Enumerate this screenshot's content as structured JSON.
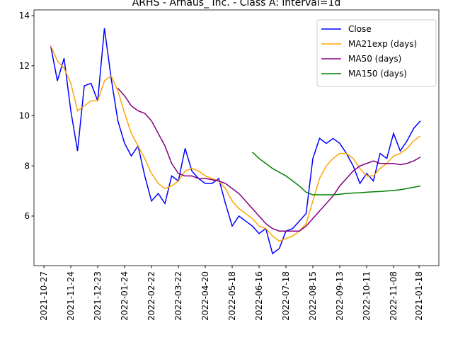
{
  "chart_data": {
    "type": "line",
    "title": "ARHS - Arhaus_ Inc. - Class A: interval=1d",
    "x": [
      5,
      10,
      15,
      20,
      25,
      30,
      35,
      40,
      45,
      50,
      55,
      60,
      65,
      70,
      75,
      80,
      85,
      90,
      95,
      100,
      105,
      110,
      115,
      120,
      125,
      130,
      135,
      140,
      145,
      150,
      155,
      160,
      165,
      170,
      175,
      180,
      185,
      190,
      195,
      200,
      205,
      210,
      215,
      220,
      225,
      230,
      235,
      240,
      245,
      250,
      255,
      260,
      265,
      270,
      275,
      280
    ],
    "series": [
      {
        "name": "Close",
        "color": "#0000ff",
        "values": [
          12.8,
          11.4,
          12.3,
          10.2,
          8.6,
          11.2,
          11.3,
          10.6,
          13.5,
          11.5,
          9.8,
          8.9,
          8.4,
          8.8,
          7.6,
          6.6,
          6.9,
          6.5,
          7.6,
          7.4,
          8.7,
          7.8,
          7.5,
          7.3,
          7.3,
          7.5,
          6.5,
          5.6,
          6.0,
          5.8,
          5.6,
          5.3,
          5.5,
          4.5,
          4.7,
          5.4,
          5.5,
          5.8,
          6.1,
          8.3,
          9.1,
          8.9,
          9.1,
          8.9,
          8.5,
          8.0,
          7.3,
          7.7,
          7.4,
          8.5,
          8.3,
          9.3,
          8.6,
          9.0,
          9.5,
          9.8
        ]
      },
      {
        "name": "MA21exp (days)",
        "color": "#ffa500",
        "values": [
          12.8,
          12.2,
          11.9,
          11.3,
          10.2,
          10.4,
          10.6,
          10.6,
          11.4,
          11.6,
          11.0,
          10.1,
          9.3,
          8.8,
          8.3,
          7.7,
          7.3,
          7.1,
          7.2,
          7.4,
          7.8,
          7.9,
          7.8,
          7.6,
          7.5,
          7.4,
          7.1,
          6.6,
          6.3,
          6.1,
          5.9,
          5.6,
          5.5,
          5.2,
          5.0,
          5.1,
          5.2,
          5.4,
          5.7,
          6.6,
          7.5,
          8.0,
          8.3,
          8.5,
          8.5,
          8.3,
          7.9,
          7.6,
          7.6,
          7.9,
          8.1,
          8.4,
          8.5,
          8.7,
          9.0,
          9.2
        ]
      },
      {
        "name": "MA50 (days)",
        "color": "#800080",
        "values": [
          null,
          null,
          null,
          null,
          null,
          null,
          null,
          null,
          null,
          null,
          11.1,
          10.8,
          10.4,
          10.2,
          10.1,
          9.8,
          9.3,
          8.8,
          8.1,
          7.7,
          7.6,
          7.6,
          7.5,
          7.5,
          7.45,
          7.4,
          7.3,
          7.1,
          6.9,
          6.6,
          6.3,
          6.0,
          5.7,
          5.5,
          5.4,
          5.4,
          5.4,
          5.4,
          5.6,
          5.9,
          6.2,
          6.5,
          6.8,
          7.2,
          7.5,
          7.8,
          8.0,
          8.1,
          8.2,
          8.1,
          8.1,
          8.1,
          8.05,
          8.1,
          8.2,
          8.35
        ]
      },
      {
        "name": "MA150 (days)",
        "color": "#008000",
        "values": [
          null,
          null,
          null,
          null,
          null,
          null,
          null,
          null,
          null,
          null,
          null,
          null,
          null,
          null,
          null,
          null,
          null,
          null,
          null,
          null,
          null,
          null,
          null,
          null,
          null,
          null,
          null,
          null,
          null,
          null,
          8.55,
          8.3,
          8.1,
          7.9,
          7.75,
          7.6,
          7.4,
          7.2,
          6.95,
          6.85,
          6.85,
          6.85,
          6.85,
          6.87,
          6.9,
          6.92,
          6.93,
          6.95,
          6.97,
          6.98,
          7.0,
          7.02,
          7.05,
          7.1,
          7.15,
          7.2
        ]
      }
    ],
    "xlim": [
      -7.4,
      293.7
    ],
    "xticks": [
      {
        "value": 0,
        "label": "2021-10-27"
      },
      {
        "value": 20,
        "label": "2021-11-24"
      },
      {
        "value": 40,
        "label": "2021-12-23"
      },
      {
        "value": 60,
        "label": "2022-01-24"
      },
      {
        "value": 80,
        "label": "2022-02-22"
      },
      {
        "value": 100,
        "label": "2022-03-22"
      },
      {
        "value": 120,
        "label": "2022-04-20"
      },
      {
        "value": 140,
        "label": "2022-05-18"
      },
      {
        "value": 160,
        "label": "2022-06-16"
      },
      {
        "value": 180,
        "label": "2022-07-18"
      },
      {
        "value": 200,
        "label": "2022-08-15"
      },
      {
        "value": 220,
        "label": "2022-09-13"
      },
      {
        "value": 240,
        "label": "2022-10-11"
      },
      {
        "value": 260,
        "label": "2022-11-08"
      },
      {
        "value": 279,
        "label": "2021-01-18"
      }
    ],
    "ylim": [
      4.02,
      14.23
    ],
    "yticks": [
      6,
      8,
      10,
      12,
      14
    ],
    "legend": "upper right"
  }
}
